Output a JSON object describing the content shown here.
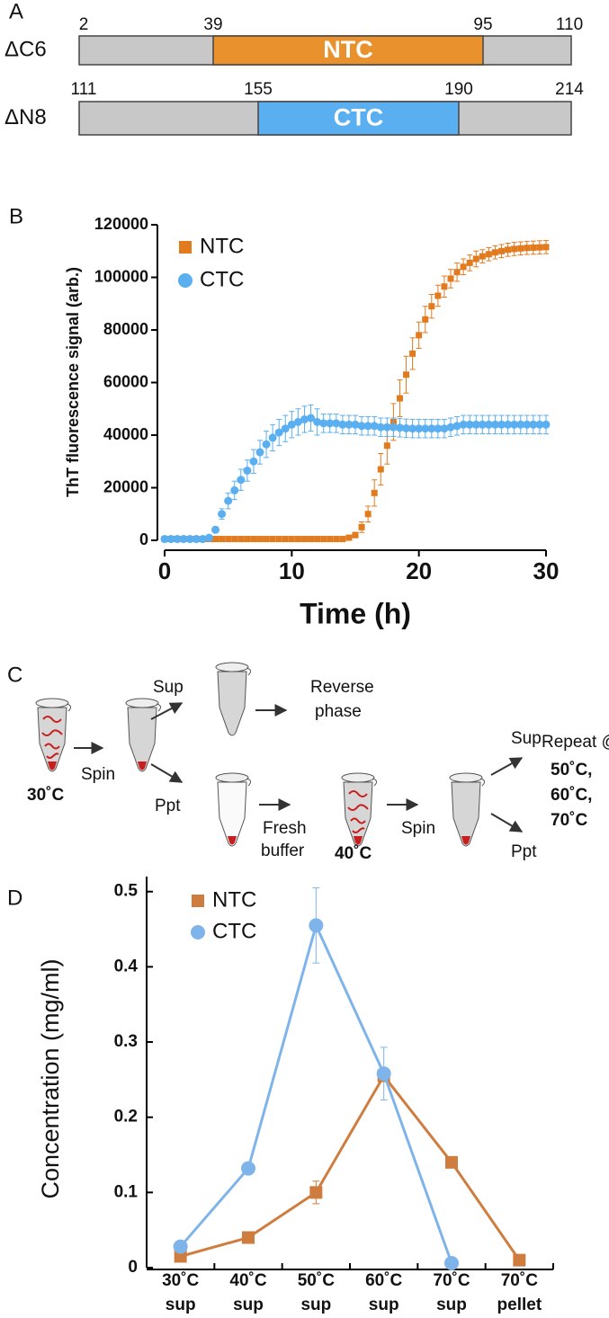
{
  "panel_labels": [
    "A",
    "B",
    "C",
    "D"
  ],
  "domains": [
    {
      "name": "ΔC6",
      "region": "NTC",
      "color": "#e8912d",
      "boundaries": [
        2,
        39,
        95,
        110
      ]
    },
    {
      "name": "ΔN8",
      "region": "CTC",
      "color": "#5aaff0",
      "boundaries": [
        111,
        155,
        190,
        214
      ]
    }
  ],
  "workflow": {
    "texts": [
      "Spin",
      "Sup",
      "Ppt",
      "Reverse",
      "phase",
      "30˚C",
      "Fresh",
      "buffer",
      "40˚C",
      "Spin",
      "Sup",
      "Ppt",
      "Repeat @",
      "50˚C,",
      "60˚C,",
      "70˚C"
    ]
  },
  "chart_data": [
    {
      "type": "scatter",
      "y_label": "ThT fluorescence signal (arb.)",
      "x_label": "Time (h)",
      "xlim": [
        0,
        30
      ],
      "xticks": [
        0,
        10,
        20,
        30
      ],
      "ylim": [
        0,
        120000
      ],
      "yticks": [
        0,
        20000,
        40000,
        60000,
        80000,
        100000,
        120000
      ],
      "x": [
        0,
        0.5,
        1,
        1.5,
        2,
        2.5,
        3,
        3.5,
        4,
        4.5,
        5,
        5.5,
        6,
        6.5,
        7,
        7.5,
        8,
        8.5,
        9,
        9.5,
        10,
        10.5,
        11,
        11.5,
        12,
        12.5,
        13,
        13.5,
        14,
        14.5,
        15,
        15.5,
        16,
        16.5,
        17,
        17.5,
        18,
        18.5,
        19,
        19.5,
        20,
        20.5,
        21,
        21.5,
        22,
        22.5,
        23,
        23.5,
        24,
        24.5,
        25,
        25.5,
        26,
        26.5,
        27,
        27.5,
        28,
        28.5,
        29,
        29.5,
        30
      ],
      "series": [
        {
          "name": "NTC",
          "color": "#e27a1e",
          "marker": "square",
          "values": [
            500,
            500,
            500,
            500,
            500,
            500,
            500,
            500,
            500,
            500,
            500,
            500,
            500,
            500,
            500,
            500,
            500,
            500,
            500,
            500,
            500,
            500,
            500,
            500,
            500,
            500,
            500,
            500,
            500,
            1000,
            2000,
            5000,
            10000,
            18000,
            27000,
            36000,
            45000,
            54000,
            63000,
            71000,
            78000,
            84000,
            89000,
            93000,
            96500,
            99500,
            102000,
            104000,
            105500,
            107000,
            108000,
            108800,
            109500,
            110000,
            110500,
            110800,
            111000,
            111200,
            111300,
            111400,
            111500
          ],
          "errors": [
            300,
            300,
            300,
            300,
            300,
            300,
            300,
            300,
            300,
            300,
            300,
            300,
            300,
            300,
            300,
            300,
            300,
            300,
            300,
            300,
            300,
            300,
            300,
            300,
            300,
            300,
            300,
            300,
            300,
            500,
            1000,
            2000,
            3000,
            5000,
            6000,
            7000,
            7000,
            7000,
            7000,
            6000,
            5000,
            5000,
            4500,
            4000,
            4000,
            3500,
            3500,
            3000,
            3000,
            3000,
            2500,
            2500,
            2500,
            2500,
            2500,
            2500,
            2500,
            2500,
            2500,
            2500,
            2500
          ]
        },
        {
          "name": "CTC",
          "color": "#5aaff0",
          "marker": "circle",
          "values": [
            500,
            500,
            500,
            500,
            500,
            500,
            500,
            1000,
            4000,
            10000,
            15000,
            19000,
            23000,
            26500,
            30000,
            33500,
            36500,
            39000,
            41000,
            42500,
            44000,
            45000,
            46000,
            46500,
            45000,
            44500,
            44500,
            44500,
            44000,
            44000,
            44000,
            43500,
            43500,
            43500,
            43000,
            43000,
            43000,
            42800,
            42600,
            42500,
            42500,
            42500,
            42500,
            42500,
            42500,
            43000,
            43500,
            44000,
            44000,
            44000,
            44000,
            44000,
            44000,
            44000,
            44000,
            44000,
            44000,
            44000,
            44000,
            44000,
            44000
          ],
          "errors": [
            300,
            300,
            300,
            300,
            300,
            300,
            300,
            500,
            1000,
            2000,
            3000,
            3500,
            4000,
            4000,
            4500,
            4500,
            5000,
            5000,
            5000,
            5000,
            5000,
            5000,
            5000,
            5000,
            5000,
            3500,
            3500,
            3500,
            3500,
            3500,
            3500,
            3500,
            3500,
            3500,
            3500,
            3500,
            3500,
            3500,
            3500,
            3500,
            3500,
            3500,
            3500,
            3500,
            3500,
            3500,
            3500,
            3500,
            3500,
            3500,
            3500,
            3500,
            3500,
            3500,
            3500,
            3500,
            3500,
            3500,
            3500,
            3500,
            3500
          ]
        }
      ]
    },
    {
      "type": "line",
      "y_label": "Concentration (mg/ml)",
      "categories": [
        [
          "30˚C",
          "sup"
        ],
        [
          "40˚C",
          "sup"
        ],
        [
          "50˚C",
          "sup"
        ],
        [
          "60˚C",
          "sup"
        ],
        [
          "70˚C",
          "sup"
        ],
        [
          "70˚C",
          "pellet"
        ]
      ],
      "ylim": [
        0,
        0.52
      ],
      "yticks": [
        0,
        0.1,
        0.2,
        0.3,
        0.4,
        0.5
      ],
      "series": [
        {
          "name": "NTC",
          "color": "#cf7d3e",
          "marker": "square",
          "values": [
            0.015,
            0.04,
            0.1,
            0.255,
            0.14,
            0.01
          ],
          "errors": [
            null,
            null,
            0.015,
            null,
            null,
            null
          ]
        },
        {
          "name": "CTC",
          "color": "#7fb4ea",
          "marker": "circle",
          "values": [
            0.028,
            0.132,
            0.455,
            0.258,
            0.006,
            null
          ],
          "errors": [
            null,
            null,
            0.05,
            0.035,
            null,
            null
          ]
        }
      ]
    }
  ]
}
